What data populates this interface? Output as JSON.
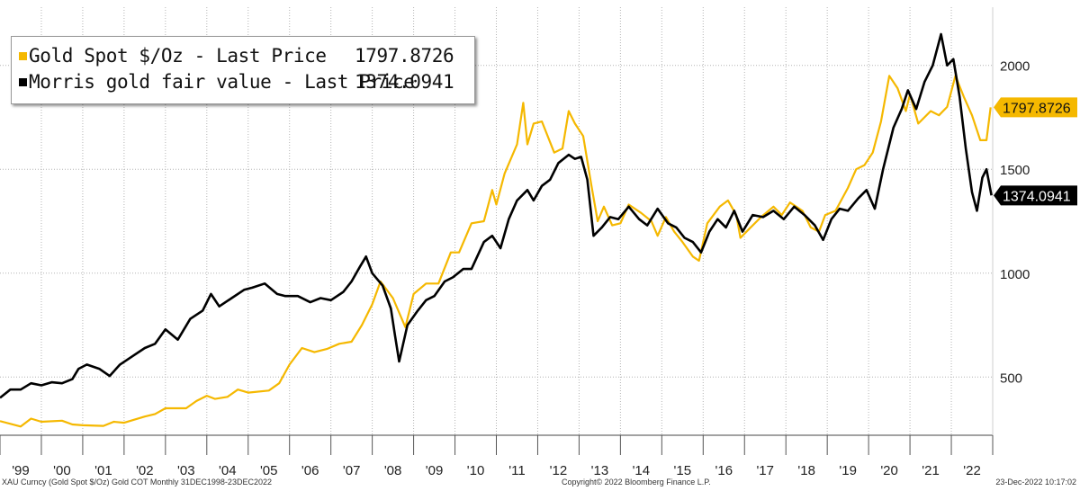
{
  "legend": {
    "items": [
      {
        "swatch_color": "#f5b800",
        "label": "Gold Spot $/Oz - Last Price",
        "value": "1797.8726"
      },
      {
        "swatch_color": "#000000",
        "label": "Morris gold fair value - Last Price",
        "value": "1374.0941"
      }
    ]
  },
  "last_price_tags": [
    {
      "text": "1797.8726",
      "color": "#f5b800",
      "text_color": "#111111",
      "at": 1797.8726
    },
    {
      "text": "1374.0941",
      "color": "#000000",
      "text_color": "#ffffff",
      "at": 1374.0941
    }
  ],
  "footer": {
    "left": "XAU Curncy (Gold Spot  $/Oz) Gold COT  Monthly 31DEC1998-23DEC2022",
    "center": "Copyright© 2022 Bloomberg Finance L.P.",
    "right": "23-Dec-2022 10:17:02"
  },
  "chart_data": {
    "type": "line",
    "xlim": [
      1999.0,
      2023.0
    ],
    "ylim": [
      220,
      2280
    ],
    "y_ticks": [
      500,
      1000,
      1500,
      2000
    ],
    "y_axis_side": "right",
    "x_tick_labels": [
      "'99",
      "'00",
      "'01",
      "'02",
      "'03",
      "'04",
      "'05",
      "'06",
      "'07",
      "'08",
      "'09",
      "'10",
      "'11",
      "'12",
      "'13",
      "'14",
      "'15",
      "'16",
      "'17",
      "'18",
      "'19",
      "'20",
      "'21",
      "'22"
    ],
    "x_tick_years": [
      1999,
      2000,
      2001,
      2002,
      2003,
      2004,
      2005,
      2006,
      2007,
      2008,
      2009,
      2010,
      2011,
      2012,
      2013,
      2014,
      2015,
      2016,
      2017,
      2018,
      2019,
      2020,
      2021,
      2022
    ],
    "grid": "dotted",
    "legend_position": "top-left",
    "series": [
      {
        "name": "Gold Spot $/Oz - Last Price",
        "color": "#f5b800",
        "points": [
          [
            1999.0,
            288
          ],
          [
            1999.5,
            262
          ],
          [
            1999.75,
            300
          ],
          [
            2000.0,
            285
          ],
          [
            2000.5,
            290
          ],
          [
            2000.75,
            272
          ],
          [
            2001.0,
            268
          ],
          [
            2001.5,
            265
          ],
          [
            2001.75,
            285
          ],
          [
            2002.0,
            280
          ],
          [
            2002.5,
            310
          ],
          [
            2002.75,
            322
          ],
          [
            2003.0,
            350
          ],
          [
            2003.5,
            350
          ],
          [
            2003.75,
            385
          ],
          [
            2004.0,
            410
          ],
          [
            2004.2,
            395
          ],
          [
            2004.5,
            405
          ],
          [
            2004.75,
            440
          ],
          [
            2005.0,
            425
          ],
          [
            2005.5,
            435
          ],
          [
            2005.75,
            470
          ],
          [
            2006.0,
            560
          ],
          [
            2006.3,
            640
          ],
          [
            2006.6,
            620
          ],
          [
            2006.9,
            635
          ],
          [
            2007.2,
            660
          ],
          [
            2007.5,
            670
          ],
          [
            2007.75,
            750
          ],
          [
            2008.0,
            850
          ],
          [
            2008.2,
            960
          ],
          [
            2008.5,
            880
          ],
          [
            2008.8,
            740
          ],
          [
            2009.0,
            900
          ],
          [
            2009.3,
            950
          ],
          [
            2009.6,
            950
          ],
          [
            2009.9,
            1100
          ],
          [
            2010.1,
            1100
          ],
          [
            2010.4,
            1240
          ],
          [
            2010.7,
            1250
          ],
          [
            2010.9,
            1400
          ],
          [
            2011.0,
            1330
          ],
          [
            2011.2,
            1480
          ],
          [
            2011.5,
            1620
          ],
          [
            2011.65,
            1820
          ],
          [
            2011.75,
            1620
          ],
          [
            2011.9,
            1720
          ],
          [
            2012.1,
            1730
          ],
          [
            2012.4,
            1580
          ],
          [
            2012.6,
            1600
          ],
          [
            2012.75,
            1780
          ],
          [
            2012.9,
            1720
          ],
          [
            2013.1,
            1660
          ],
          [
            2013.3,
            1420
          ],
          [
            2013.45,
            1250
          ],
          [
            2013.6,
            1320
          ],
          [
            2013.8,
            1230
          ],
          [
            2014.0,
            1240
          ],
          [
            2014.2,
            1330
          ],
          [
            2014.5,
            1290
          ],
          [
            2014.75,
            1250
          ],
          [
            2014.9,
            1180
          ],
          [
            2015.1,
            1270
          ],
          [
            2015.3,
            1200
          ],
          [
            2015.5,
            1150
          ],
          [
            2015.75,
            1080
          ],
          [
            2015.9,
            1060
          ],
          [
            2016.1,
            1240
          ],
          [
            2016.4,
            1320
          ],
          [
            2016.6,
            1350
          ],
          [
            2016.8,
            1280
          ],
          [
            2016.9,
            1170
          ],
          [
            2017.1,
            1210
          ],
          [
            2017.4,
            1270
          ],
          [
            2017.7,
            1320
          ],
          [
            2017.9,
            1280
          ],
          [
            2018.1,
            1340
          ],
          [
            2018.4,
            1300
          ],
          [
            2018.6,
            1220
          ],
          [
            2018.8,
            1200
          ],
          [
            2018.95,
            1280
          ],
          [
            2019.2,
            1300
          ],
          [
            2019.5,
            1410
          ],
          [
            2019.7,
            1500
          ],
          [
            2019.9,
            1520
          ],
          [
            2020.1,
            1580
          ],
          [
            2020.3,
            1730
          ],
          [
            2020.5,
            1950
          ],
          [
            2020.7,
            1890
          ],
          [
            2020.9,
            1780
          ],
          [
            2021.0,
            1860
          ],
          [
            2021.2,
            1720
          ],
          [
            2021.5,
            1780
          ],
          [
            2021.7,
            1760
          ],
          [
            2021.9,
            1800
          ],
          [
            2022.1,
            1950
          ],
          [
            2022.3,
            1850
          ],
          [
            2022.5,
            1760
          ],
          [
            2022.7,
            1640
          ],
          [
            2022.85,
            1640
          ],
          [
            2022.95,
            1797.8726
          ]
        ]
      },
      {
        "name": "Morris gold fair value - Last Price",
        "color": "#000000",
        "points": [
          [
            1999.0,
            400
          ],
          [
            1999.25,
            440
          ],
          [
            1999.5,
            440
          ],
          [
            1999.75,
            470
          ],
          [
            2000.0,
            460
          ],
          [
            2000.25,
            475
          ],
          [
            2000.5,
            470
          ],
          [
            2000.75,
            490
          ],
          [
            2000.9,
            540
          ],
          [
            2001.1,
            560
          ],
          [
            2001.4,
            540
          ],
          [
            2001.65,
            505
          ],
          [
            2001.9,
            560
          ],
          [
            2002.2,
            600
          ],
          [
            2002.5,
            640
          ],
          [
            2002.75,
            660
          ],
          [
            2003.0,
            730
          ],
          [
            2003.3,
            680
          ],
          [
            2003.6,
            780
          ],
          [
            2003.9,
            820
          ],
          [
            2004.1,
            900
          ],
          [
            2004.3,
            840
          ],
          [
            2004.6,
            880
          ],
          [
            2004.9,
            920
          ],
          [
            2005.1,
            930
          ],
          [
            2005.4,
            950
          ],
          [
            2005.7,
            900
          ],
          [
            2005.9,
            890
          ],
          [
            2006.2,
            890
          ],
          [
            2006.5,
            860
          ],
          [
            2006.75,
            880
          ],
          [
            2007.0,
            870
          ],
          [
            2007.3,
            910
          ],
          [
            2007.5,
            960
          ],
          [
            2007.7,
            1030
          ],
          [
            2007.85,
            1080
          ],
          [
            2008.0,
            1000
          ],
          [
            2008.25,
            940
          ],
          [
            2008.45,
            830
          ],
          [
            2008.55,
            700
          ],
          [
            2008.65,
            575
          ],
          [
            2008.85,
            750
          ],
          [
            2009.1,
            820
          ],
          [
            2009.3,
            870
          ],
          [
            2009.5,
            890
          ],
          [
            2009.75,
            960
          ],
          [
            2009.95,
            980
          ],
          [
            2010.2,
            1020
          ],
          [
            2010.4,
            1020
          ],
          [
            2010.7,
            1150
          ],
          [
            2010.9,
            1180
          ],
          [
            2011.1,
            1120
          ],
          [
            2011.3,
            1260
          ],
          [
            2011.5,
            1350
          ],
          [
            2011.75,
            1400
          ],
          [
            2011.9,
            1350
          ],
          [
            2012.1,
            1420
          ],
          [
            2012.3,
            1450
          ],
          [
            2012.5,
            1530
          ],
          [
            2012.75,
            1570
          ],
          [
            2012.9,
            1550
          ],
          [
            2013.05,
            1560
          ],
          [
            2013.2,
            1450
          ],
          [
            2013.35,
            1180
          ],
          [
            2013.55,
            1220
          ],
          [
            2013.75,
            1270
          ],
          [
            2013.95,
            1260
          ],
          [
            2014.2,
            1320
          ],
          [
            2014.45,
            1260
          ],
          [
            2014.65,
            1230
          ],
          [
            2014.9,
            1310
          ],
          [
            2015.15,
            1240
          ],
          [
            2015.35,
            1220
          ],
          [
            2015.55,
            1170
          ],
          [
            2015.75,
            1150
          ],
          [
            2015.95,
            1100
          ],
          [
            2016.15,
            1200
          ],
          [
            2016.35,
            1260
          ],
          [
            2016.55,
            1220
          ],
          [
            2016.75,
            1300
          ],
          [
            2016.95,
            1200
          ],
          [
            2017.2,
            1280
          ],
          [
            2017.45,
            1270
          ],
          [
            2017.7,
            1300
          ],
          [
            2017.95,
            1260
          ],
          [
            2018.2,
            1320
          ],
          [
            2018.45,
            1280
          ],
          [
            2018.7,
            1230
          ],
          [
            2018.9,
            1160
          ],
          [
            2019.1,
            1260
          ],
          [
            2019.3,
            1310
          ],
          [
            2019.5,
            1300
          ],
          [
            2019.75,
            1360
          ],
          [
            2019.95,
            1400
          ],
          [
            2020.15,
            1310
          ],
          [
            2020.35,
            1500
          ],
          [
            2020.6,
            1700
          ],
          [
            2020.8,
            1790
          ],
          [
            2020.95,
            1880
          ],
          [
            2021.15,
            1790
          ],
          [
            2021.35,
            1920
          ],
          [
            2021.55,
            2000
          ],
          [
            2021.75,
            2150
          ],
          [
            2021.9,
            2000
          ],
          [
            2022.05,
            2030
          ],
          [
            2022.2,
            1850
          ],
          [
            2022.35,
            1600
          ],
          [
            2022.5,
            1390
          ],
          [
            2022.62,
            1300
          ],
          [
            2022.75,
            1460
          ],
          [
            2022.85,
            1500
          ],
          [
            2022.97,
            1374.0941
          ]
        ]
      }
    ]
  }
}
